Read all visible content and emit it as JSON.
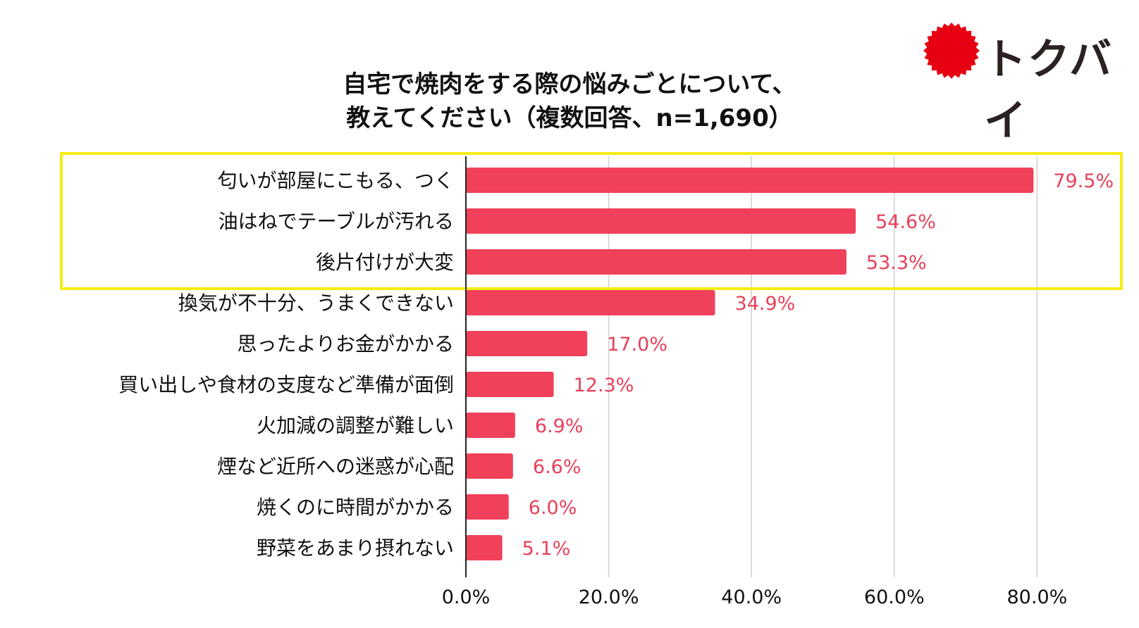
{
  "brand": {
    "name": "トクバイ",
    "mark_color": "#e60012"
  },
  "colors": {
    "bar": "#f0405a",
    "label": "#e8405a",
    "highlight": "#f5ec14",
    "grid": "#d0d0d0"
  },
  "chart_data": {
    "type": "bar",
    "orientation": "horizontal",
    "title": "自宅で焼肉をする際の悩みごとについて、",
    "subtitle": "教えてください（複数回答、n=1,690）",
    "categories": [
      "匂いが部屋にこもる、つく",
      "油はねでテーブルが汚れる",
      "後片付けが大変",
      "換気が不十分、うまくできない",
      "思ったよりお金がかかる",
      "買い出しや食材の支度など準備が面倒",
      "火加減の調整が難しい",
      "煙など近所への迷惑が心配",
      "焼くのに時間がかかる",
      "野菜をあまり摂れない"
    ],
    "values": [
      79.5,
      54.6,
      53.3,
      34.9,
      17.0,
      12.3,
      6.9,
      6.6,
      6.0,
      5.1
    ],
    "value_labels": [
      "79.5%",
      "54.6%",
      "53.3%",
      "34.9%",
      "17.0%",
      "12.3%",
      "6.9%",
      "6.6%",
      "6.0%",
      "5.1%"
    ],
    "x_ticks": [
      0,
      20,
      40,
      60,
      80
    ],
    "x_tick_labels": [
      "0.0%",
      "20.0%",
      "40.0%",
      "60.0%",
      "80.0%"
    ],
    "xlim": [
      0,
      92
    ],
    "grid": true,
    "highlighted_categories": [
      0,
      1,
      2
    ]
  }
}
